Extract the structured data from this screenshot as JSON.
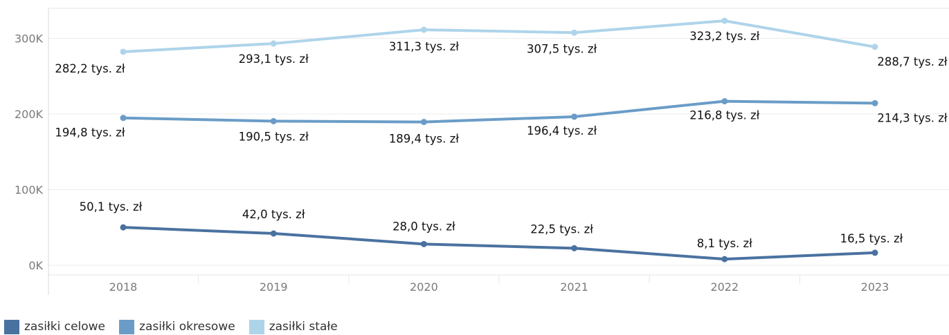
{
  "chart_data": {
    "type": "line",
    "categories": [
      "2018",
      "2019",
      "2020",
      "2021",
      "2022",
      "2023"
    ],
    "y_ticks": [
      "0K",
      "100K",
      "200K",
      "300K"
    ],
    "y_tick_values": [
      0,
      100,
      200,
      300
    ],
    "ylim": [
      -15,
      345
    ],
    "grid": true,
    "legend_position": "bottom-left",
    "series": [
      {
        "name": "zasiłki stałe",
        "color": "#aed4ea",
        "values": [
          282.2,
          293.1,
          311.3,
          307.5,
          323.2,
          288.7
        ],
        "labels": [
          "282,2 tys. zł",
          "293,1 tys. zł",
          "311,3 tys. zł",
          "307,5 tys. zł",
          "323,2 tys. zł",
          "288,7 tys. zł"
        ]
      },
      {
        "name": "zasiłki okresowe",
        "color": "#6a9cc7",
        "values": [
          194.8,
          190.5,
          189.4,
          196.4,
          216.8,
          214.3
        ],
        "labels": [
          "194,8 tys. zł",
          "190,5 tys. zł",
          "189,4 tys. zł",
          "196,4 tys. zł",
          "216,8 tys. zł",
          "214,3 tys. zł"
        ]
      },
      {
        "name": "zasiłki celowe",
        "color": "#4a72a0",
        "values": [
          50.1,
          42.0,
          28.0,
          22.5,
          8.1,
          16.5
        ],
        "labels": [
          "50,1 tys. zł",
          "42,0 tys. zł",
          "28,0 tys. zł",
          "22,5 tys. zł",
          "8,1 tys. zł",
          "16,5 tys. zł"
        ]
      }
    ]
  },
  "legend": [
    {
      "label": "zasiłki celowe",
      "color": "#4a72a0"
    },
    {
      "label": "zasiłki okresowe",
      "color": "#6a9cc7"
    },
    {
      "label": "zasiłki stałe",
      "color": "#aed4ea"
    }
  ]
}
